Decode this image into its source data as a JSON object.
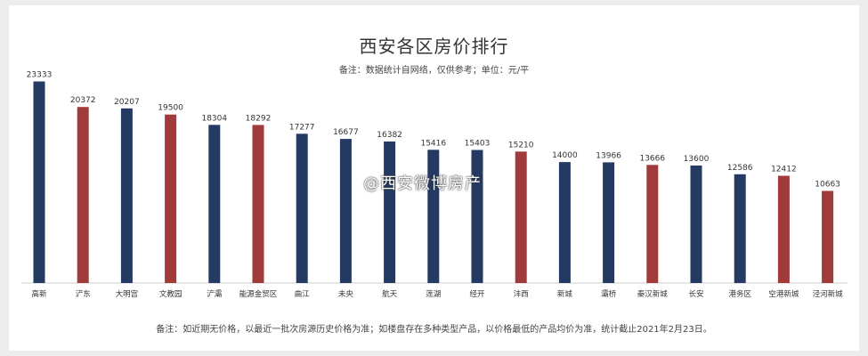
{
  "chart_data": {
    "type": "bar",
    "title": "西安各区房价排行",
    "subtitle": "备注：数据统计自网络，仅供参考；单位：元/平",
    "categories": [
      "高新",
      "浐东",
      "大明宫",
      "文教园",
      "浐灞",
      "能源金贸区",
      "曲江",
      "未央",
      "航天",
      "莲湖",
      "经开",
      "沣西",
      "新城",
      "灞桥",
      "秦汉新城",
      "长安",
      "港务区",
      "空港新城",
      "泾河新城"
    ],
    "values": [
      23333,
      20372,
      20207,
      19500,
      18304,
      18292,
      17277,
      16677,
      16382,
      15416,
      15403,
      15210,
      14000,
      13966,
      13666,
      13600,
      12586,
      12412,
      10663
    ],
    "bar_colors": [
      "#243a63",
      "#a13a3a",
      "#243a63",
      "#a13a3a",
      "#243a63",
      "#a13a3a",
      "#243a63",
      "#243a63",
      "#243a63",
      "#243a63",
      "#243a63",
      "#a13a3a",
      "#243a63",
      "#243a63",
      "#a13a3a",
      "#243a63",
      "#243a63",
      "#a13a3a",
      "#a13a3a"
    ],
    "ylim": [
      0,
      24000
    ],
    "grid": false,
    "footnote": "备注：如近期无价格，以最近一批次房源历史价格为准；如楼盘存在多种类型产品，以价格最低的产品均价为准，统计截止2021年2月23日。"
  },
  "watermark": "@西安微博房产",
  "colors": {
    "primary": "#243a63",
    "highlight": "#a13a3a",
    "axis": "#cccccc",
    "text": "#333333"
  }
}
